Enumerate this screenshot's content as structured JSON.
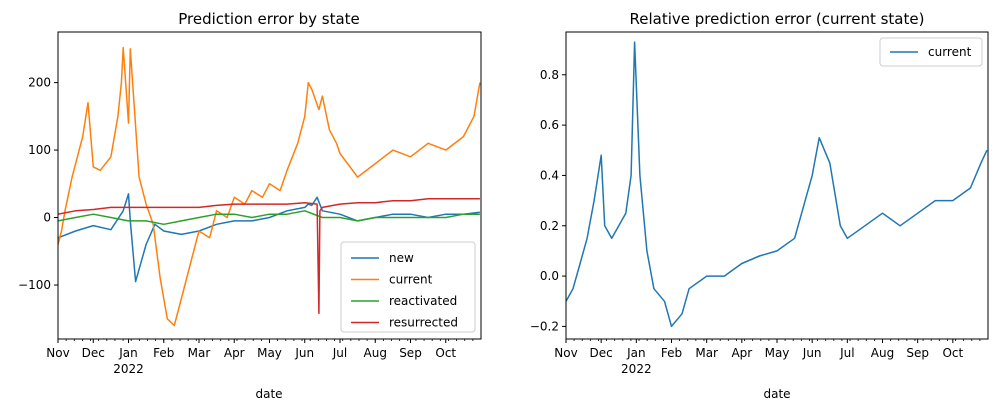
{
  "chart_data": [
    {
      "type": "line",
      "title": "Prediction error by state",
      "xlabel": "date",
      "ylabel": "",
      "xlim": [
        0,
        12
      ],
      "ylim": [
        -180,
        275
      ],
      "x_ticks": [
        {
          "x": 0,
          "label": "Nov"
        },
        {
          "x": 1,
          "label": "Dec"
        },
        {
          "x": 2,
          "label": "Jan",
          "sublabel": "2022"
        },
        {
          "x": 3,
          "label": "Feb"
        },
        {
          "x": 4,
          "label": "Mar"
        },
        {
          "x": 5,
          "label": "Apr"
        },
        {
          "x": 6,
          "label": "May"
        },
        {
          "x": 7,
          "label": "Jun"
        },
        {
          "x": 8,
          "label": "Jul"
        },
        {
          "x": 9,
          "label": "Aug"
        },
        {
          "x": 10,
          "label": "Sep"
        },
        {
          "x": 11,
          "label": "Oct"
        }
      ],
      "y_ticks": [
        {
          "y": 200,
          "label": "200"
        },
        {
          "y": 100,
          "label": "100"
        },
        {
          "y": 0,
          "label": "0"
        },
        {
          "y": -100,
          "label": "−100"
        }
      ],
      "legend_position": "bottom-right",
      "series": [
        {
          "name": "new",
          "color": "#1f77b4",
          "x": [
            0,
            0.5,
            1,
            1.5,
            1.85,
            2.0,
            2.05,
            2.2,
            2.5,
            2.75,
            3.0,
            3.5,
            4,
            4.5,
            5,
            5.5,
            6,
            6.5,
            7,
            7.1,
            7.2,
            7.35,
            7.5,
            8,
            8.5,
            9,
            9.5,
            10,
            10.5,
            11,
            11.5,
            11.97
          ],
          "y": [
            -30,
            -20,
            -12,
            -18,
            10,
            35,
            -5,
            -95,
            -40,
            -10,
            -20,
            -25,
            -20,
            -10,
            -5,
            -5,
            0,
            10,
            15,
            20,
            18,
            30,
            10,
            5,
            -5,
            0,
            5,
            5,
            0,
            5,
            5,
            8
          ]
        },
        {
          "name": "current",
          "color": "#ff7f0e",
          "x": [
            0,
            0.1,
            0.2,
            0.4,
            0.7,
            0.85,
            1.0,
            1.2,
            1.5,
            1.7,
            1.8,
            1.85,
            2.0,
            2.05,
            2.3,
            2.5,
            2.7,
            2.9,
            3.1,
            3.3,
            3.5,
            3.8,
            4.0,
            4.3,
            4.5,
            4.8,
            5.0,
            5.3,
            5.5,
            5.8,
            6.0,
            6.3,
            6.5,
            6.8,
            7.0,
            7.1,
            7.2,
            7.4,
            7.5,
            7.7,
            7.9,
            8.0,
            8.5,
            9.0,
            9.5,
            10.0,
            10.5,
            11.0,
            11.5,
            11.8,
            11.97
          ],
          "y": [
            -40,
            -20,
            10,
            60,
            120,
            170,
            75,
            70,
            90,
            150,
            200,
            252,
            140,
            250,
            60,
            20,
            -10,
            -90,
            -150,
            -160,
            -120,
            -60,
            -20,
            -30,
            10,
            0,
            30,
            20,
            40,
            30,
            50,
            40,
            70,
            110,
            150,
            200,
            190,
            160,
            180,
            130,
            110,
            95,
            60,
            80,
            100,
            90,
            110,
            100,
            120,
            150,
            200
          ]
        },
        {
          "name": "reactivated",
          "color": "#2ca02c",
          "x": [
            0,
            0.5,
            1,
            1.5,
            2,
            2.5,
            3,
            3.5,
            4,
            4.5,
            5,
            5.5,
            6,
            6.5,
            7,
            7.5,
            8,
            8.5,
            9,
            9.5,
            10,
            10.5,
            11,
            11.5,
            11.97
          ],
          "y": [
            -5,
            0,
            5,
            0,
            -5,
            -5,
            -10,
            -5,
            0,
            5,
            5,
            0,
            5,
            5,
            10,
            0,
            0,
            -5,
            0,
            0,
            0,
            0,
            0,
            5,
            5
          ]
        },
        {
          "name": "resurrected",
          "color": "#d62728",
          "x": [
            0,
            0.5,
            1,
            1.5,
            2,
            2.5,
            3,
            3.5,
            4,
            4.5,
            5,
            5.5,
            6,
            6.5,
            7,
            7.35,
            7.4,
            7.43,
            7.5,
            8,
            8.5,
            9,
            9.5,
            10,
            10.5,
            11,
            11.5,
            11.97
          ],
          "y": [
            5,
            10,
            12,
            15,
            15,
            15,
            15,
            15,
            15,
            18,
            20,
            20,
            20,
            20,
            22,
            20,
            -142,
            10,
            15,
            20,
            22,
            22,
            25,
            25,
            28,
            28,
            28,
            28
          ]
        }
      ]
    },
    {
      "type": "line",
      "title": "Relative prediction error (current state)",
      "xlabel": "date",
      "ylabel": "",
      "xlim": [
        0,
        12
      ],
      "ylim": [
        -0.25,
        0.97
      ],
      "x_ticks": [
        {
          "x": 0,
          "label": "Nov"
        },
        {
          "x": 1,
          "label": "Dec"
        },
        {
          "x": 2,
          "label": "Jan",
          "sublabel": "2022"
        },
        {
          "x": 3,
          "label": "Feb"
        },
        {
          "x": 4,
          "label": "Mar"
        },
        {
          "x": 5,
          "label": "Apr"
        },
        {
          "x": 6,
          "label": "May"
        },
        {
          "x": 7,
          "label": "Jun"
        },
        {
          "x": 8,
          "label": "Jul"
        },
        {
          "x": 9,
          "label": "Aug"
        },
        {
          "x": 10,
          "label": "Sep"
        },
        {
          "x": 11,
          "label": "Oct"
        }
      ],
      "y_ticks": [
        {
          "y": 0.8,
          "label": "0.8"
        },
        {
          "y": 0.6,
          "label": "0.6"
        },
        {
          "y": 0.4,
          "label": "0.4"
        },
        {
          "y": 0.2,
          "label": "0.2"
        },
        {
          "y": 0.0,
          "label": "0.0"
        },
        {
          "y": -0.2,
          "label": "−0.2"
        }
      ],
      "legend_position": "top-right",
      "series": [
        {
          "name": "current",
          "color": "#1f77b4",
          "x": [
            0,
            0.2,
            0.4,
            0.6,
            0.8,
            1.0,
            1.1,
            1.3,
            1.5,
            1.7,
            1.85,
            1.95,
            2.1,
            2.3,
            2.5,
            2.8,
            3.0,
            3.3,
            3.5,
            4.0,
            4.5,
            5.0,
            5.5,
            6.0,
            6.5,
            7.0,
            7.2,
            7.5,
            7.8,
            8.0,
            8.5,
            9.0,
            9.5,
            10.0,
            10.5,
            11.0,
            11.5,
            11.8,
            11.97
          ],
          "y": [
            -0.1,
            -0.05,
            0.05,
            0.15,
            0.3,
            0.48,
            0.2,
            0.15,
            0.2,
            0.25,
            0.4,
            0.93,
            0.4,
            0.1,
            -0.05,
            -0.1,
            -0.2,
            -0.15,
            -0.05,
            0.0,
            0.0,
            0.05,
            0.08,
            0.1,
            0.15,
            0.4,
            0.55,
            0.45,
            0.2,
            0.15,
            0.2,
            0.25,
            0.2,
            0.25,
            0.3,
            0.3,
            0.35,
            0.45,
            0.5
          ]
        }
      ]
    }
  ]
}
